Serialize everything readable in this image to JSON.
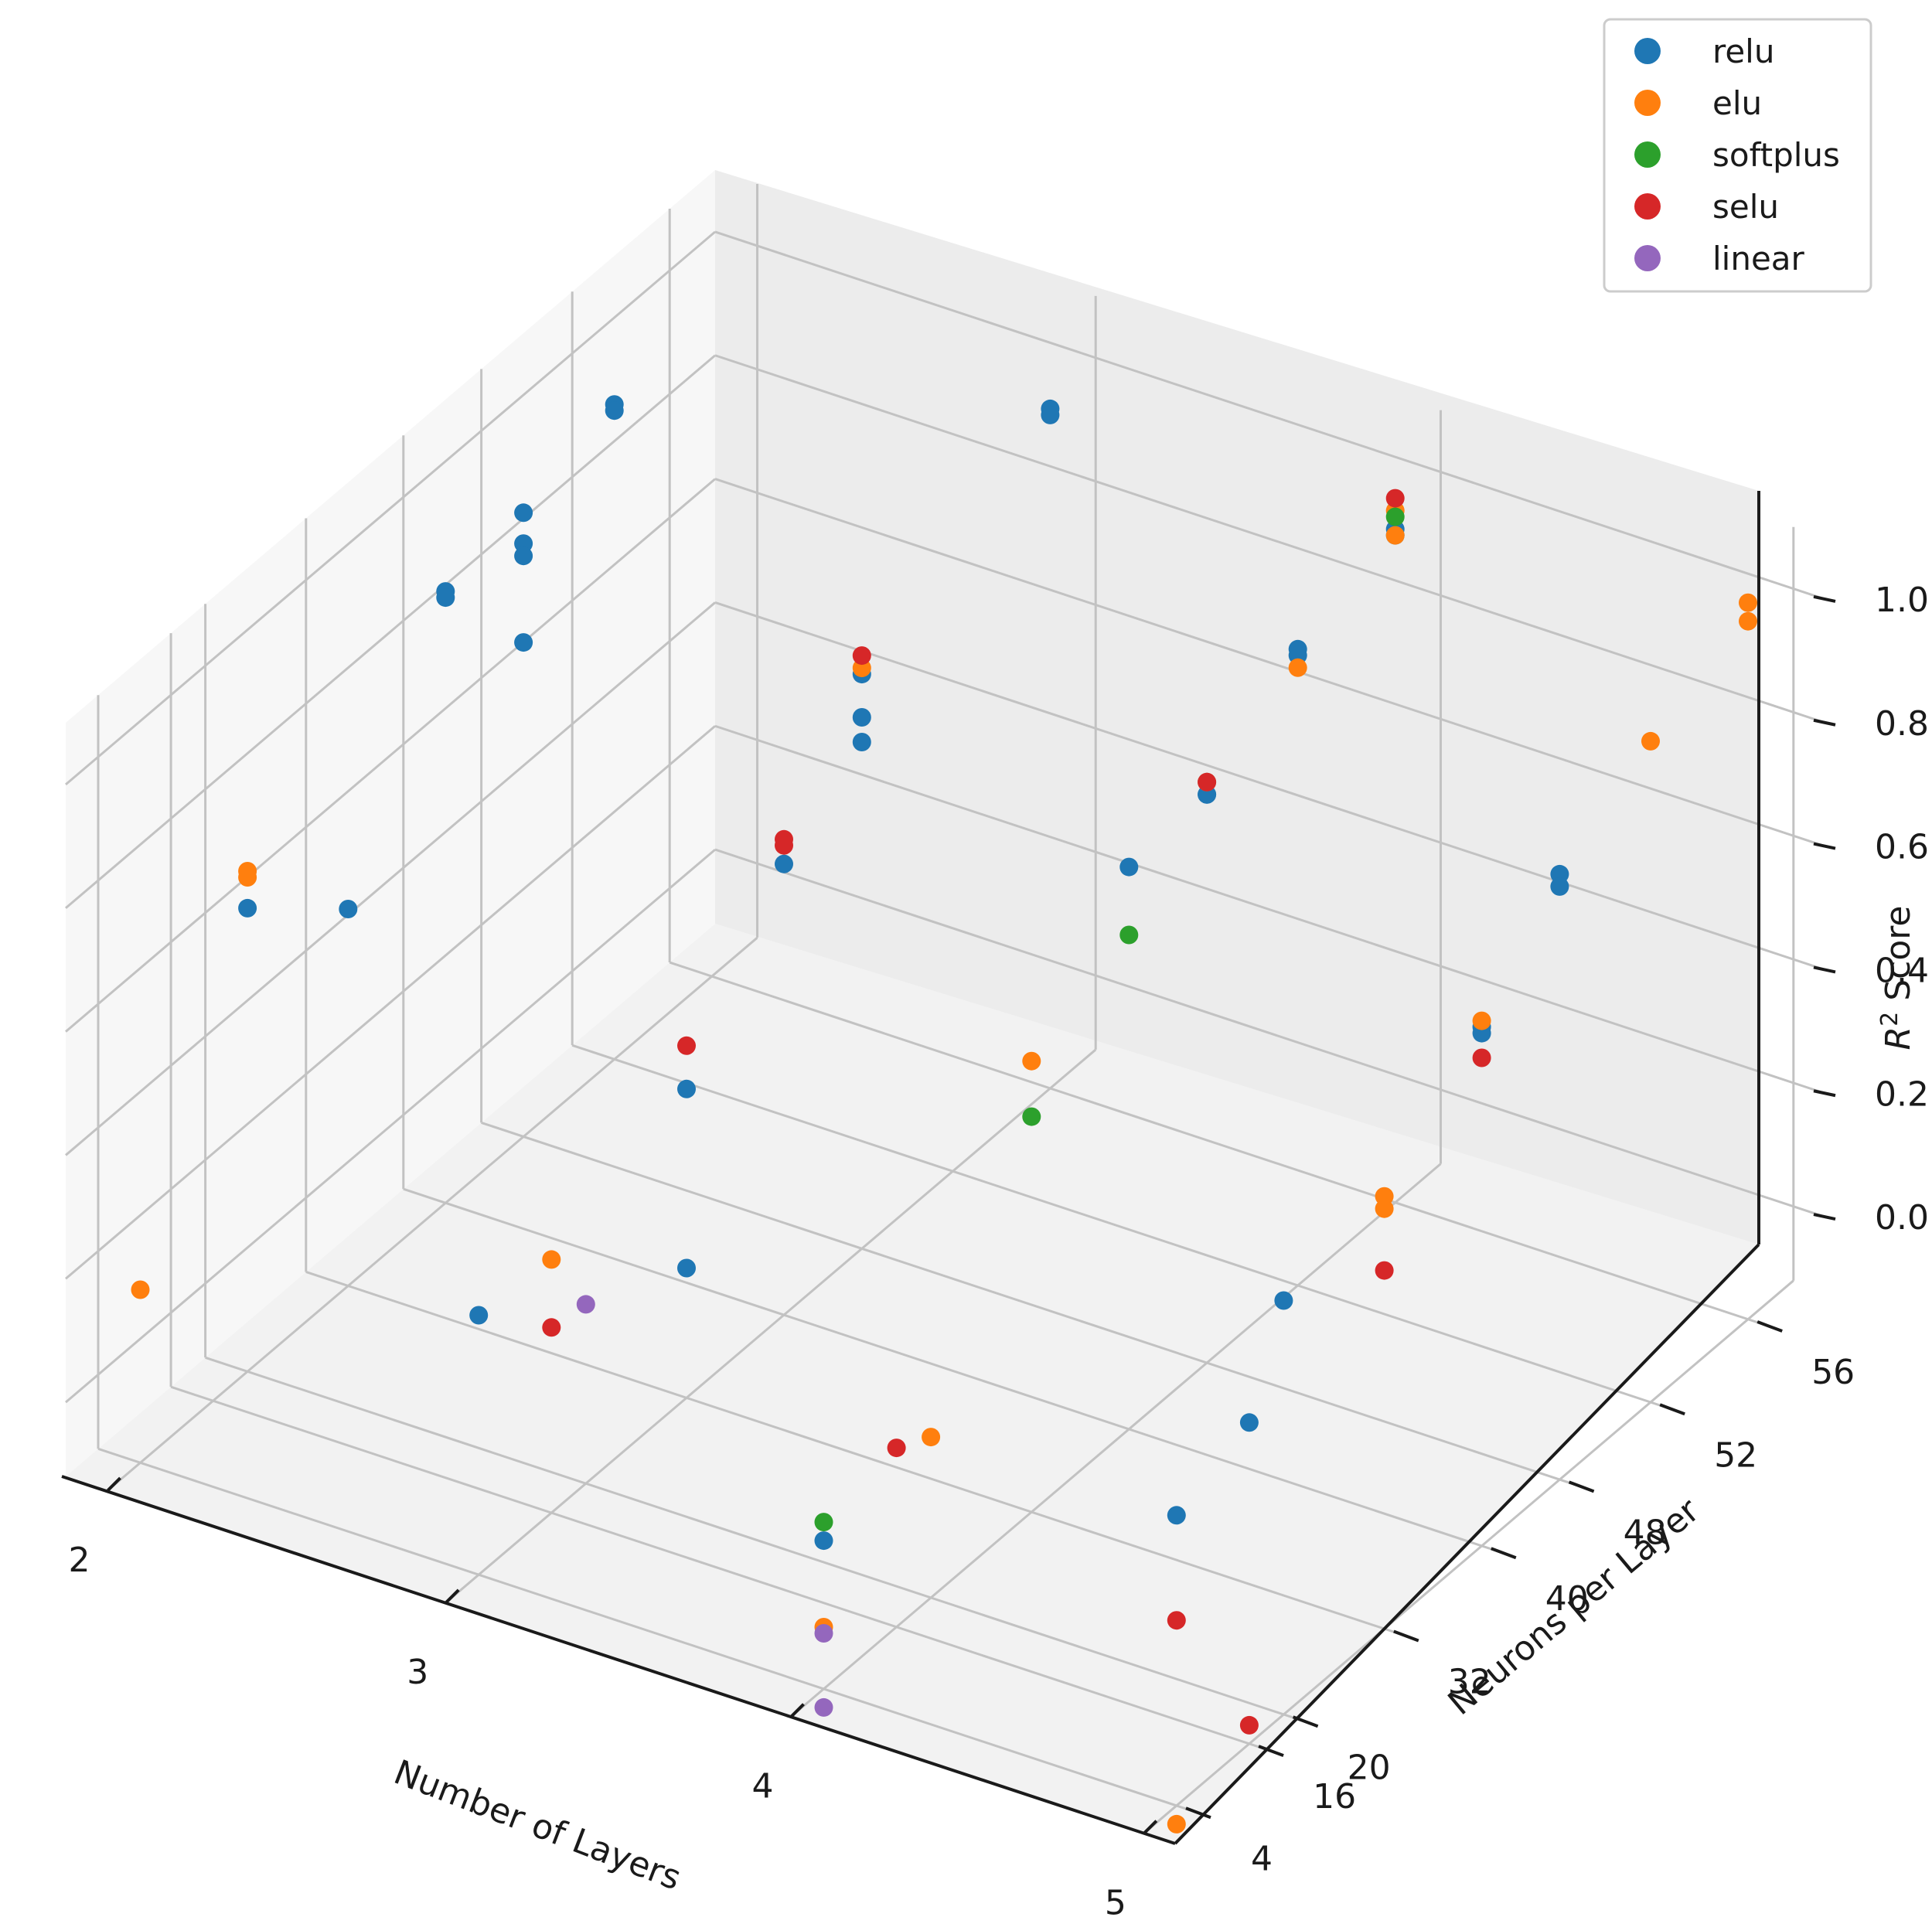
{
  "chart_data": {
    "type": "scatter3d",
    "title": "",
    "xlabel": "Number of Layers",
    "ylabel": "Neurons per Layer",
    "zlabel": "R² Score",
    "zlabel_base": "R",
    "zlabel_sup": "2",
    "zlabel_rest": " Score",
    "x_ticks": [
      "2",
      "3",
      "4",
      "5"
    ],
    "y_ticks": [
      "4",
      "16",
      "20",
      "32",
      "40",
      "48",
      "52",
      "56"
    ],
    "z_ticks": [
      "0.0",
      "0.2",
      "0.4",
      "0.6",
      "0.8",
      "1.0"
    ],
    "legend_position": "top-right",
    "series": [
      {
        "name": "relu",
        "color": "#1f77b4",
        "points": [
          {
            "x": 2,
            "y": 52,
            "z": 0.94
          },
          {
            "x": 2,
            "y": 52,
            "z": 0.93
          },
          {
            "x": 2,
            "y": 40,
            "z": 0.87
          },
          {
            "x": 2,
            "y": 40,
            "z": 0.86
          },
          {
            "x": 2,
            "y": 20,
            "z": 0.63
          },
          {
            "x": 2,
            "y": 48,
            "z": 0.89
          },
          {
            "x": 2,
            "y": 48,
            "z": 0.84
          },
          {
            "x": 2,
            "y": 48,
            "z": 0.82
          },
          {
            "x": 2,
            "y": 48,
            "z": 0.68
          },
          {
            "x": 2,
            "y": 32,
            "z": 0.49
          },
          {
            "x": 3,
            "y": 48,
            "z": 0.81
          },
          {
            "x": 3,
            "y": 48,
            "z": 0.74
          },
          {
            "x": 3,
            "y": 40,
            "z": 0.61
          },
          {
            "x": 3,
            "y": 32,
            "z": 0.38
          },
          {
            "x": 3,
            "y": 32,
            "z": 0.09
          },
          {
            "x": 3,
            "y": 56,
            "z": 0.98
          },
          {
            "x": 3,
            "y": 56,
            "z": 0.97
          },
          {
            "x": 3,
            "y": 48,
            "z": 0.7
          },
          {
            "x": 3,
            "y": 4,
            "z": 0.3
          },
          {
            "x": 4,
            "y": 56,
            "z": 0.97
          },
          {
            "x": 4,
            "y": 56,
            "z": 0.96
          },
          {
            "x": 4,
            "y": 48,
            "z": 0.82
          },
          {
            "x": 4,
            "y": 48,
            "z": 0.8
          },
          {
            "x": 4,
            "y": 48,
            "z": 0.8
          },
          {
            "x": 4,
            "y": 52,
            "z": 0.91
          },
          {
            "x": 4,
            "y": 52,
            "z": 0.9
          },
          {
            "x": 4,
            "y": 40,
            "z": 0.79
          },
          {
            "x": 4,
            "y": 4,
            "z": 0.12
          },
          {
            "x": 5,
            "y": 40,
            "z": 0.72
          },
          {
            "x": 5,
            "y": 40,
            "z": 0.71
          },
          {
            "x": 5,
            "y": 48,
            "z": 0.86
          },
          {
            "x": 5,
            "y": 48,
            "z": 0.84
          },
          {
            "x": 5,
            "y": 20,
            "z": 0.55
          },
          {
            "x": 5,
            "y": 16,
            "z": 0.4
          },
          {
            "x": 5,
            "y": 4,
            "z": 0.35
          }
        ]
      },
      {
        "name": "elu",
        "color": "#ff7f0e",
        "points": [
          {
            "x": 2,
            "y": 20,
            "z": 0.69
          },
          {
            "x": 2,
            "y": 20,
            "z": 0.68
          },
          {
            "x": 2,
            "y": 4,
            "z": 0.16
          },
          {
            "x": 3,
            "y": 48,
            "z": 0.82
          },
          {
            "x": 3,
            "y": 16,
            "z": 0.29
          },
          {
            "x": 4,
            "y": 52,
            "z": 0.88
          },
          {
            "x": 4,
            "y": 48,
            "z": 0.82
          },
          {
            "x": 4,
            "y": 20,
            "z": 0.14
          },
          {
            "x": 4,
            "y": 4,
            "z": -0.02
          },
          {
            "x": 4,
            "y": 56,
            "z": 1.0
          },
          {
            "x": 4,
            "y": 56,
            "z": 0.96
          },
          {
            "x": 4,
            "y": 32,
            "z": 0.61
          },
          {
            "x": 5,
            "y": 56,
            "z": 1.04
          },
          {
            "x": 5,
            "y": 56,
            "z": 1.01
          },
          {
            "x": 5,
            "y": 52,
            "z": 0.95
          },
          {
            "x": 5,
            "y": 40,
            "z": 0.73
          },
          {
            "x": 5,
            "y": 32,
            "z": 0.58
          },
          {
            "x": 5,
            "y": 32,
            "z": 0.56
          },
          {
            "x": 5,
            "y": 4,
            "z": -0.15
          },
          {
            "x": 5,
            "y": 4,
            "z": -0.36
          },
          {
            "x": 5,
            "y": 4,
            "z": -0.38
          }
        ]
      },
      {
        "name": "softplus",
        "color": "#2ca02c",
        "points": [
          {
            "x": 4,
            "y": 56,
            "z": 0.99
          },
          {
            "x": 4,
            "y": 40,
            "z": 0.68
          },
          {
            "x": 4,
            "y": 32,
            "z": 0.52
          },
          {
            "x": 4,
            "y": 4,
            "z": 0.15
          }
        ]
      },
      {
        "name": "selu",
        "color": "#d62728",
        "points": [
          {
            "x": 3,
            "y": 40,
            "z": 0.65
          },
          {
            "x": 3,
            "y": 32,
            "z": 0.45
          },
          {
            "x": 3,
            "y": 16,
            "z": 0.18
          },
          {
            "x": 3,
            "y": 48,
            "z": 0.84
          },
          {
            "x": 3,
            "y": 40,
            "z": 0.64
          },
          {
            "x": 4,
            "y": 56,
            "z": 1.02
          },
          {
            "x": 4,
            "y": 48,
            "z": 0.82
          },
          {
            "x": 4,
            "y": 16,
            "z": 0.17
          },
          {
            "x": 5,
            "y": 40,
            "z": 0.67
          },
          {
            "x": 5,
            "y": 32,
            "z": 0.46
          },
          {
            "x": 5,
            "y": 4,
            "z": 0.18
          },
          {
            "x": 5,
            "y": 16,
            "z": -0.09
          },
          {
            "x": 5,
            "y": 4,
            "z": -0.35
          }
        ]
      },
      {
        "name": "linear",
        "color": "#9467bd",
        "points": [
          {
            "x": 3,
            "y": 20,
            "z": 0.17
          },
          {
            "x": 4,
            "y": 4,
            "z": -0.03
          },
          {
            "x": 4,
            "y": 4,
            "z": -0.15
          }
        ]
      }
    ]
  }
}
